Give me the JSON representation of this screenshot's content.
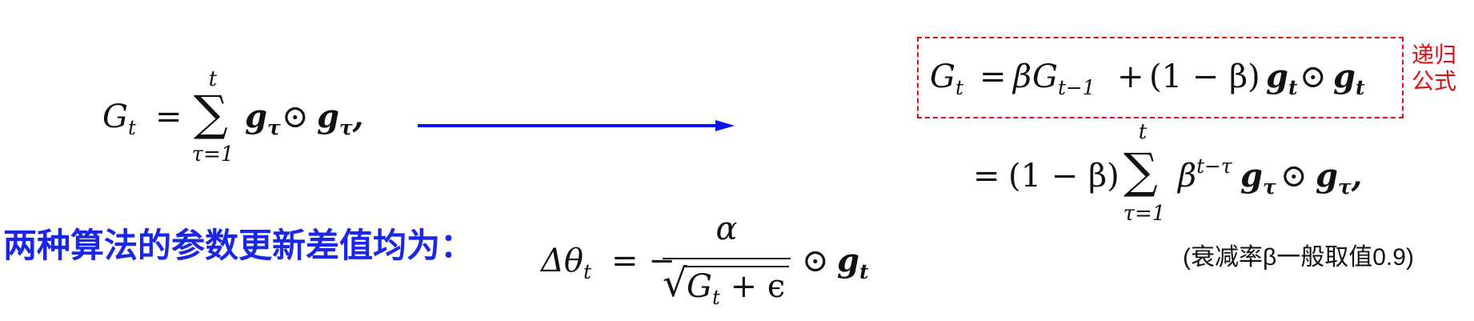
{
  "formula_left": {
    "lhs": "G",
    "lhs_sub": "t",
    "eq": "=",
    "sum_upper": "t",
    "sum_lower": "τ=1",
    "term_g": "g",
    "term_sub": "τ",
    "odot": "⊙",
    "trailing": ","
  },
  "recursive_box": {
    "lhs": "G",
    "lhs_sub": "t",
    "eq": "=",
    "beta": "β",
    "G": "G",
    "G_sub": "t−1",
    "plus": "+",
    "paren_term": "(1 − β)",
    "g": "g",
    "g_sub": "t",
    "odot": "⊙"
  },
  "recursive_label": "递归公式",
  "expanded": {
    "eq": "=",
    "paren_term": "(1 − β)",
    "sum_upper": "t",
    "sum_lower": "τ=1",
    "beta": "β",
    "beta_exp": "t−τ",
    "g": "g",
    "g_sub": "τ",
    "odot": "⊙",
    "trailing": ","
  },
  "update_title": "两种算法的参数更新差值均为：",
  "update_formula": {
    "delta": "Δθ",
    "delta_sub": "t",
    "eq": "= −",
    "numerator": "α",
    "sqrt_symbol": "√",
    "den_G": "G",
    "den_sub": "t",
    "den_rest": "+ ϵ",
    "odot": "⊙",
    "g": "g",
    "g_sub": "t"
  },
  "note": "(衰减率β一般取值0.9)",
  "colors": {
    "arrow": "#0a10f0",
    "title_blue": "#1a26e8",
    "annotation_red": "#e01010"
  }
}
